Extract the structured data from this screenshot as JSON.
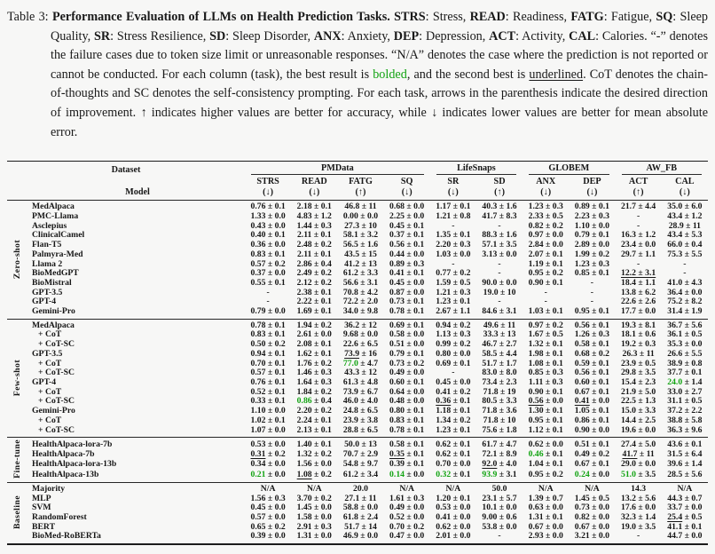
{
  "caption": {
    "label": "Table 3:",
    "segments": [
      {
        "t": "Performance Evaluation of LLMs on Health Prediction Tasks. ",
        "b": true
      },
      {
        "t": "STRS",
        "b": true
      },
      {
        "t": ": Stress, "
      },
      {
        "t": "READ",
        "b": true
      },
      {
        "t": ": Readiness, "
      },
      {
        "t": "FATG",
        "b": true
      },
      {
        "t": ": Fatigue, "
      },
      {
        "t": "SQ",
        "b": true
      },
      {
        "t": ": Sleep Quality, "
      },
      {
        "t": "SR",
        "b": true
      },
      {
        "t": ": Stress Resilience, "
      },
      {
        "t": "SD",
        "b": true
      },
      {
        "t": ": Sleep Disorder, "
      },
      {
        "t": "ANX",
        "b": true
      },
      {
        "t": ": Anxiety, "
      },
      {
        "t": "DEP",
        "b": true
      },
      {
        "t": ": Depression, "
      },
      {
        "t": "ACT",
        "b": true
      },
      {
        "t": ": Activity, "
      },
      {
        "t": "CAL",
        "b": true
      },
      {
        "t": ": Calories. "
      },
      {
        "t": "“-” denotes the failure cases due to token size limit or unreasonable responses. “N/A” denotes the case where the prediction is not reported or cannot be conducted. For each column (task), the best result is "
      },
      {
        "t": "bolded",
        "g": true
      },
      {
        "t": ", and the second best is "
      },
      {
        "t": "underlined",
        "u": true
      },
      {
        "t": ". CoT denotes the chain-of-thoughts and SC denotes the self-consistency prompting. For each task, arrows in the parenthesis indicate the desired direction of improvement. ↑ indicates higher values are better for accuracy, while ↓ indicates lower values are better for mean absolute error."
      }
    ]
  },
  "table": {
    "dataset_label": "Dataset",
    "model_label": "Model",
    "groups": [
      {
        "label": "PMData",
        "span": 4
      },
      {
        "label": "LifeSnaps",
        "span": 2
      },
      {
        "label": "GLOBEM",
        "span": 2
      },
      {
        "label": "AW_FB",
        "span": 2
      }
    ],
    "columns": [
      {
        "name": "STRS",
        "dir": "↓"
      },
      {
        "name": "READ",
        "dir": "↓"
      },
      {
        "name": "FATG",
        "dir": "↑"
      },
      {
        "name": "SQ",
        "dir": "↓"
      },
      {
        "name": "SR",
        "dir": "↓"
      },
      {
        "name": "SD",
        "dir": "↑"
      },
      {
        "name": "ANX",
        "dir": "↓"
      },
      {
        "name": "DEP",
        "dir": "↓"
      },
      {
        "name": "ACT",
        "dir": "↑"
      },
      {
        "name": "CAL",
        "dir": "↓"
      }
    ],
    "legend": {
      "best": "green bold",
      "second": "underlined"
    },
    "accent_green": "#12a312",
    "sections": [
      {
        "label": "Zero-shot",
        "rows": [
          {
            "model": "MedAlpaca",
            "cells": [
              "0.76 ± 0.1",
              "2.18 ± 0.1",
              "46.8 ± 11",
              "0.68 ± 0.0",
              "1.17 ± 0.1",
              "40.3 ± 1.6",
              "1.23 ± 0.3",
              "0.89 ± 0.1",
              "21.7 ± 4.4",
              "35.0 ± 6.0"
            ]
          },
          {
            "model": "PMC-Llama",
            "cells": [
              "1.33 ± 0.0",
              "4.83 ± 1.2",
              "0.00 ± 0.0",
              "2.25 ± 0.0",
              "1.21 ± 0.8",
              "41.7 ± 8.3",
              "2.33 ± 0.5",
              "2.23 ± 0.3",
              "-",
              "43.4 ± 1.2"
            ]
          },
          {
            "model": "Asclepius",
            "cells": [
              "0.43 ± 0.0",
              "1.44 ± 0.3",
              "27.3 ± 10",
              "0.45 ± 0.1",
              "-",
              "-",
              "0.82 ± 0.2",
              "1.10 ± 0.0",
              "-",
              "28.9 ± 11"
            ]
          },
          {
            "model": "ClinicalCamel",
            "cells": [
              "0.40 ± 0.1",
              "2.11 ± 0.1",
              "58.1 ± 3.2",
              "0.37 ± 0.1",
              "1.35 ± 0.1",
              "88.3 ± 1.6",
              "0.97 ± 0.0",
              "0.79 ± 0.1",
              "16.3 ± 1.2",
              "43.4 ± 5.3"
            ]
          },
          {
            "model": "Flan-T5",
            "cells": [
              "0.36 ± 0.0",
              "2.48 ± 0.2",
              "56.5 ± 1.6",
              "0.56 ± 0.1",
              "2.20 ± 0.3",
              "57.1 ± 3.5",
              "2.84 ± 0.0",
              "2.89 ± 0.0",
              "23.4 ± 0.0",
              "66.0 ± 0.4"
            ]
          },
          {
            "model": "Palmyra-Med",
            "cells": [
              "0.83 ± 0.1",
              "2.11 ± 0.1",
              "43.5 ± 15",
              "0.44 ± 0.0",
              "1.03 ± 0.0",
              "3.13 ± 0.0",
              "2.07 ± 0.1",
              "1.99 ± 0.2",
              "29.7 ± 1.1",
              "75.3 ± 5.5"
            ]
          },
          {
            "model": "Llama 2",
            "cells": [
              "0.57 ± 0.2",
              "2.86 ± 0.4",
              "41.2 ± 13",
              "0.89 ± 0.3",
              "-",
              "-",
              "1.19 ± 0.1",
              "1.23 ± 0.3",
              "-",
              "-"
            ]
          },
          {
            "model": "BioMedGPT",
            "cells": [
              "0.37 ± 0.0",
              "2.49 ± 0.2",
              "61.2 ± 3.3",
              "0.41 ± 0.1",
              "0.77 ± 0.2",
              "-",
              "0.95 ± 0.2",
              "0.85 ± 0.1",
              "_12.2 ± 3.1_",
              "-"
            ]
          },
          {
            "model": "BioMistral",
            "cells": [
              "0.55 ± 0.1",
              "2.12 ± 0.2",
              "56.6 ± 3.1",
              "0.45 ± 0.0",
              "1.59 ± 0.5",
              "90.0 ± 0.0",
              "0.90 ± 0.1",
              "-",
              "18.4 ± 1.1",
              "41.0 ± 4.3"
            ]
          },
          {
            "model": "GPT-3.5",
            "cells": [
              "-",
              "2.38 ± 0.1",
              "70.8 ± 4.2",
              "0.87 ± 0.0",
              "1.21 ± 0.3",
              "19.0 ± 10",
              "-",
              "-",
              "13.8 ± 6.2",
              "36.4 ± 0.0"
            ]
          },
          {
            "model": "GPT-4",
            "cells": [
              "-",
              "2.22 ± 0.1",
              "72.2 ± 2.0",
              "0.73 ± 0.1",
              "1.23 ± 0.1",
              "-",
              "-",
              "-",
              "22.6 ± 2.6",
              "75.2 ± 8.2"
            ]
          },
          {
            "model": "Gemini-Pro",
            "cells": [
              "0.79 ± 0.0",
              "1.69 ± 0.1",
              "34.0 ± 9.8",
              "0.78 ± 0.1",
              "2.67 ± 1.1",
              "84.6 ± 3.1",
              "1.03 ± 0.1",
              "0.95 ± 0.1",
              "17.7 ± 0.0",
              "31.4 ± 1.9"
            ]
          }
        ]
      },
      {
        "label": "Few-shot",
        "rows": [
          {
            "model": "MedAlpaca",
            "cells": [
              "0.78 ± 0.1",
              "1.94 ± 0.2",
              "36.2 ± 12",
              "0.69 ± 0.1",
              "0.94 ± 0.2",
              "49.6 ± 11",
              "0.97 ± 0.2",
              "0.56 ± 0.1",
              "19.3 ± 8.1",
              "36.7 ± 5.6"
            ]
          },
          {
            "model": "+ CoT",
            "cells": [
              "0.83 ± 0.1",
              "2.61 ± 0.0",
              "9.68 ± 0.0",
              "0.58 ± 0.0",
              "1.13 ± 0.3",
              "33.3 ± 13",
              "1.67 ± 0.5",
              "1.26 ± 0.3",
              "18.1 ± 0.6",
              "36.1 ± 0.5"
            ]
          },
          {
            "model": "+ CoT-SC",
            "cells": [
              "0.50 ± 0.2",
              "2.08 ± 0.1",
              "22.6 ± 6.5",
              "0.51 ± 0.0",
              "0.99 ± 0.2",
              "46.7 ± 2.7",
              "1.32 ± 0.1",
              "0.58 ± 0.1",
              "19.2 ± 0.3",
              "35.3 ± 0.0"
            ]
          },
          {
            "model": "GPT-3.5",
            "cells": [
              "0.94 ± 0.1",
              "1.62 ± 0.1",
              "_73.9_ ± 16",
              "0.79 ± 0.1",
              "0.80 ± 0.0",
              "58.5 ± 4.4",
              "1.98 ± 0.1",
              "0.68 ± 0.2",
              "26.3 ± 11",
              "26.6 ± 5.5"
            ]
          },
          {
            "model": "+ CoT",
            "cells": [
              "0.70 ± 0.1",
              "1.76 ± 0.2",
              "*77.0* ± 4.7",
              "0.73 ± 0.2",
              "0.69 ± 0.1",
              "51.7 ± 1.7",
              "1.08 ± 0.1",
              "0.59 ± 0.1",
              "23.9 ± 0.5",
              "38.9 ± 0.8"
            ]
          },
          {
            "model": "+ CoT-SC",
            "cells": [
              "0.57 ± 0.1",
              "1.46 ± 0.3",
              "43.3 ± 12",
              "0.49 ± 0.0",
              "-",
              "83.0 ± 8.0",
              "0.85 ± 0.3",
              "0.56 ± 0.1",
              "29.8 ± 3.5",
              "37.7 ± 0.1"
            ]
          },
          {
            "model": "GPT-4",
            "cells": [
              "0.76 ± 0.1",
              "1.64 ± 0.3",
              "61.3 ± 4.8",
              "0.60 ± 0.1",
              "0.45 ± 0.0",
              "73.4 ± 2.3",
              "1.11 ± 0.3",
              "0.60 ± 0.1",
              "15.4 ± 2.3",
              "*24.0* ± 1.4"
            ]
          },
          {
            "model": "+ CoT",
            "cells": [
              "0.52 ± 0.1",
              "1.84 ± 0.2",
              "73.9 ± 6.7",
              "0.64 ± 0.0",
              "0.41 ± 0.2",
              "71.8 ± 19",
              "0.90 ± 0.1",
              "0.67 ± 0.1",
              "21.9 ± 5.0",
              "33.0 ± 2.7"
            ]
          },
          {
            "model": "+ CoT-SC",
            "cells": [
              "0.33 ± 0.1",
              "*0.86* ± 0.4",
              "46.0 ± 4.0",
              "0.48 ± 0.0",
              "_0.36_ ± 0.1",
              "80.5 ± 3.3",
              "_0.56_ ± 0.0",
              "_0.41_ ± 0.0",
              "22.5 ± 1.3",
              "31.1 ± 0.5"
            ]
          },
          {
            "model": "Gemini-Pro",
            "cells": [
              "1.10 ± 0.0",
              "2.20 ± 0.2",
              "24.8 ± 6.5",
              "0.80 ± 0.1",
              "1.18 ± 0.1",
              "71.8 ± 3.6",
              "1.30 ± 0.1",
              "1.05 ± 0.1",
              "15.0 ± 3.3",
              "37.2 ± 2.2"
            ]
          },
          {
            "model": "+ CoT",
            "cells": [
              "1.02 ± 0.1",
              "2.24 ± 0.1",
              "23.9 ± 3.8",
              "0.83 ± 0.1",
              "1.34 ± 0.2",
              "71.8 ± 10",
              "0.95 ± 0.1",
              "0.86 ± 0.1",
              "14.4 ± 2.5",
              "38.8 ± 5.8"
            ]
          },
          {
            "model": "+ CoT-SC",
            "cells": [
              "1.07 ± 0.0",
              "2.13 ± 0.1",
              "28.8 ± 6.5",
              "0.78 ± 0.1",
              "1.23 ± 0.1",
              "75.6 ± 1.8",
              "1.12 ± 0.1",
              "0.90 ± 0.0",
              "19.6 ± 0.0",
              "36.3 ± 9.6"
            ]
          }
        ]
      },
      {
        "label": "Fine-tune",
        "rows": [
          {
            "model": "HealthAlpaca-lora-7b",
            "cells": [
              "0.53 ± 0.0",
              "1.40 ± 0.1",
              "50.0 ± 13",
              "0.58 ± 0.1",
              "0.62 ± 0.1",
              "61.7 ± 4.7",
              "0.62 ± 0.0",
              "0.51 ± 0.1",
              "27.4 ± 5.0",
              "43.6 ± 0.1"
            ]
          },
          {
            "model": "HealthAlpaca-7b",
            "cells": [
              "_0.31_ ± 0.2",
              "1.32 ± 0.2",
              "70.7 ± 2.9",
              "_0.35_ ± 0.1",
              "0.62 ± 0.1",
              "72.1 ± 8.9",
              "*0.46* ± 0.1",
              "0.49 ± 0.2",
              "_41.7_ ± 11",
              "31.5 ± 6.4"
            ]
          },
          {
            "model": "HealthAlpaca-lora-13b",
            "cells": [
              "0.34 ± 0.0",
              "1.56 ± 0.0",
              "54.8 ± 9.7",
              "0.39 ± 0.1",
              "0.70 ± 0.0",
              "_92.0_ ± 4.0",
              "1.04 ± 0.1",
              "0.67 ± 0.1",
              "29.0 ± 0.0",
              "39.6 ± 1.4"
            ]
          },
          {
            "model": "HealthAlpaca-13b",
            "cells": [
              "*0.21* ± 0.0",
              "_1.08_ ± 0.2",
              "61.2 ± 3.4",
              "*0.14* ± 0.0",
              "*0.32* ± 0.1",
              "*93.9* ± 3.1",
              "0.95 ± 0.2",
              "*0.24* ± 0.0",
              "*51.0* ± 3.5",
              "28.5 ± 5.6"
            ]
          }
        ]
      },
      {
        "label": "Baseline",
        "rows": [
          {
            "model": "Majority",
            "cells": [
              "N/A",
              "N/A",
              "20.0",
              "N/A",
              "N/A",
              "50.0",
              "N/A",
              "N/A",
              "14.3",
              "N/A"
            ]
          },
          {
            "model": "MLP",
            "cells": [
              "1.56 ± 0.3",
              "3.70 ± 0.2",
              "27.1 ± 11",
              "1.61 ± 0.3",
              "1.20 ± 0.1",
              "23.1 ± 5.7",
              "1.39 ± 0.7",
              "1.45 ± 0.5",
              "13.2 ± 5.6",
              "44.3 ± 0.7"
            ]
          },
          {
            "model": "SVM",
            "cells": [
              "0.45 ± 0.0",
              "1.45 ± 0.0",
              "58.8 ± 0.0",
              "0.49 ± 0.0",
              "0.53 ± 0.0",
              "10.1 ± 0.0",
              "0.63 ± 0.0",
              "0.73 ± 0.0",
              "17.6 ± 0.0",
              "33.7 ± 0.0"
            ]
          },
          {
            "model": "RandomForest",
            "cells": [
              "0.57 ± 0.0",
              "1.58 ± 0.0",
              "61.8 ± 2.4",
              "0.52 ± 0.0",
              "0.41 ± 0.0",
              "9.00 ± 0.6",
              "1.31 ± 0.1",
              "0.82 ± 0.0",
              "32.3 ± 1.4",
              "_25.4_ ± 0.5"
            ]
          },
          {
            "model": "BERT",
            "cells": [
              "0.65 ± 0.2",
              "2.91 ± 0.3",
              "51.7 ± 14",
              "0.70 ± 0.2",
              "0.62 ± 0.0",
              "53.8 ± 0.0",
              "0.67 ± 0.0",
              "0.67 ± 0.0",
              "19.0 ± 3.5",
              "41.1 ± 0.1"
            ]
          },
          {
            "model": "BioMed-RoBERTa",
            "cells": [
              "0.39 ± 0.0",
              "1.31 ± 0.0",
              "46.9 ± 0.0",
              "0.47 ± 0.0",
              "2.01 ± 0.0",
              "-",
              "2.93 ± 0.0",
              "3.21 ± 0.0",
              "-",
              "44.7 ± 0.0"
            ]
          }
        ]
      }
    ]
  }
}
